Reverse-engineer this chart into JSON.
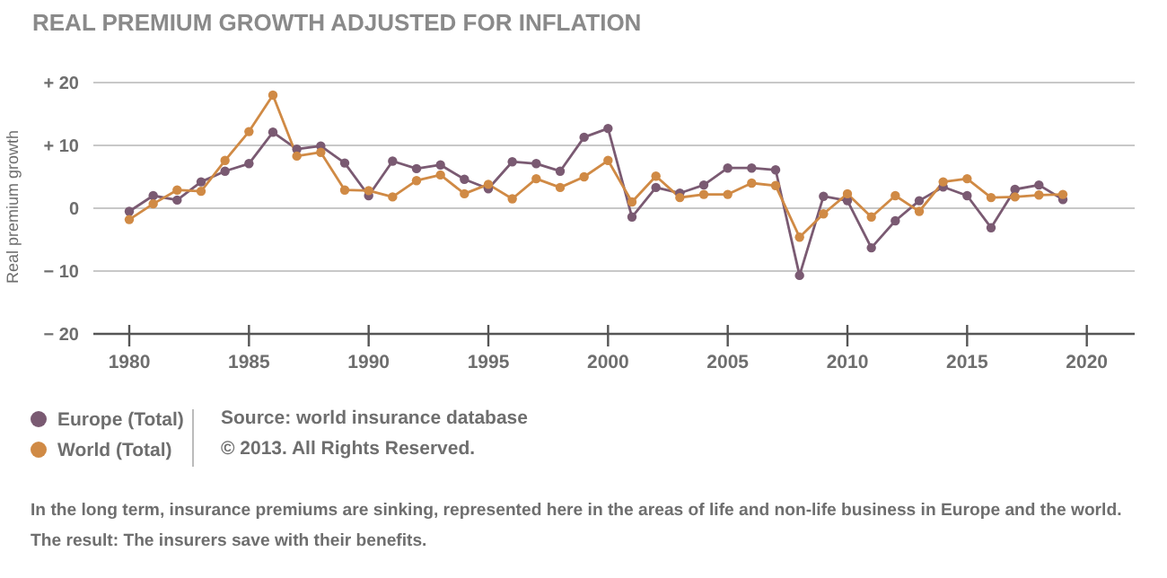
{
  "chart_data": {
    "type": "line",
    "title": "REAL PREMIUM GROWTH ADJUSTED FOR INFLATION",
    "ylabel": "Real premium growth",
    "x": [
      1980,
      1981,
      1982,
      1983,
      1984,
      1985,
      1986,
      1987,
      1988,
      1989,
      1990,
      1991,
      1992,
      1993,
      1994,
      1995,
      1996,
      1997,
      1998,
      1999,
      2000,
      2001,
      2002,
      2003,
      2004,
      2005,
      2006,
      2007,
      2008,
      2009,
      2010,
      2011,
      2012,
      2013,
      2014,
      2015,
      2016,
      2017,
      2018,
      2019
    ],
    "series": [
      {
        "name": "Europe (Total)",
        "color": "#7a5a72",
        "values": [
          -0.5,
          2.0,
          1.3,
          4.2,
          5.9,
          7.1,
          12.1,
          9.4,
          9.9,
          7.2,
          2.0,
          7.5,
          6.3,
          6.9,
          4.6,
          3.1,
          7.4,
          7.1,
          5.9,
          11.3,
          12.7,
          -1.4,
          3.3,
          2.4,
          3.7,
          6.4,
          6.4,
          6.1,
          -10.7,
          1.9,
          1.2,
          -6.3,
          -2.0,
          1.2,
          3.4,
          2.0,
          -3.1,
          3.0,
          3.7,
          1.4
        ]
      },
      {
        "name": "World (Total)",
        "color": "#d08a45",
        "values": [
          -1.8,
          0.7,
          2.9,
          2.7,
          7.6,
          12.2,
          18.0,
          8.3,
          8.9,
          2.9,
          2.8,
          1.8,
          4.4,
          5.3,
          2.3,
          3.8,
          1.5,
          4.7,
          3.3,
          5.0,
          7.6,
          1.0,
          5.1,
          1.7,
          2.2,
          2.2,
          4.0,
          3.6,
          -4.6,
          -0.9,
          2.3,
          -1.4,
          2.0,
          -0.5,
          4.2,
          4.7,
          1.7,
          1.8,
          2.1,
          2.2
        ]
      }
    ],
    "xlim": [
      1978.5,
      2022
    ],
    "xticks": [
      1980,
      1985,
      1990,
      1995,
      2000,
      2005,
      2010,
      2015,
      2020
    ],
    "ylim": [
      -20,
      20
    ],
    "yticks": [
      {
        "value": -20,
        "label": "− 20"
      },
      {
        "value": -10,
        "label": "− 10"
      },
      0,
      {
        "value": 10,
        "label": "+ 10"
      },
      {
        "value": 20,
        "label": "+ 20"
      }
    ],
    "grid": "y",
    "legend": "bottom",
    "marker": "circle",
    "line_style": "solid",
    "annotations": [
      "Source: world insurance database",
      "© 2013. All Rights Reserved.",
      "In the long term, insurance premiums are sinking, represented here in the areas of life and non-life business in Europe and the world.",
      "The result: The insurers save with their benefits."
    ]
  }
}
